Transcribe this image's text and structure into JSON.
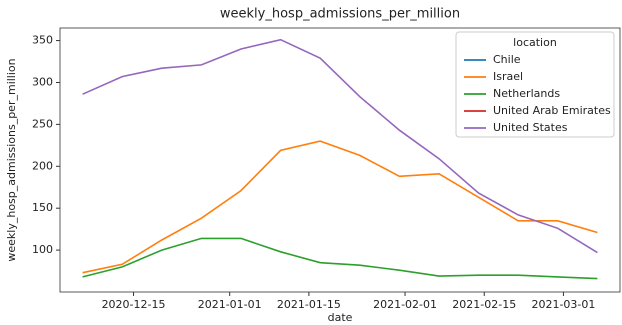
{
  "chart_data": {
    "type": "line",
    "title": "weekly_hosp_admissions_per_million",
    "x_label": "date",
    "y_label": "weekly_hosp_admissions_per_million",
    "x": [
      "2020-12-06",
      "2020-12-13",
      "2020-12-20",
      "2020-12-27",
      "2021-01-03",
      "2021-01-10",
      "2021-01-17",
      "2021-01-24",
      "2021-01-31",
      "2021-02-07",
      "2021-02-14",
      "2021-02-21",
      "2021-02-28",
      "2021-03-07"
    ],
    "series": [
      {
        "name": "Chile",
        "color": "#1f77b4",
        "values": [
          null,
          null,
          null,
          null,
          null,
          null,
          null,
          null,
          null,
          null,
          null,
          null,
          null,
          null
        ]
      },
      {
        "name": "Israel",
        "color": "#ff7f0e",
        "values": [
          73,
          83,
          112,
          138,
          171,
          219,
          230,
          213,
          188,
          191,
          163,
          135,
          135,
          121
        ]
      },
      {
        "name": "Netherlands",
        "color": "#2ca02c",
        "values": [
          68,
          80,
          100,
          114,
          114,
          98,
          85,
          82,
          76,
          69,
          70,
          70,
          68,
          66
        ]
      },
      {
        "name": "United Arab Emirates",
        "color": "#d62728",
        "values": [
          null,
          null,
          null,
          null,
          null,
          null,
          null,
          null,
          null,
          null,
          null,
          null,
          null,
          null
        ]
      },
      {
        "name": "United States",
        "color": "#9467bd",
        "values": [
          286,
          307,
          317,
          321,
          340,
          351,
          329,
          283,
          243,
          209,
          168,
          142,
          126,
          97
        ]
      }
    ],
    "legend_title": "location",
    "legend_position": "upper right",
    "xlim": [
      "2020-12-02",
      "2021-03-11"
    ],
    "xticks": [
      "2020-12-15",
      "2021-01-01",
      "2021-01-15",
      "2021-02-01",
      "2021-02-15",
      "2021-03-01"
    ],
    "ylim": [
      50,
      365
    ],
    "yticks": [
      100,
      150,
      200,
      250,
      300,
      350
    ],
    "grid": false
  }
}
